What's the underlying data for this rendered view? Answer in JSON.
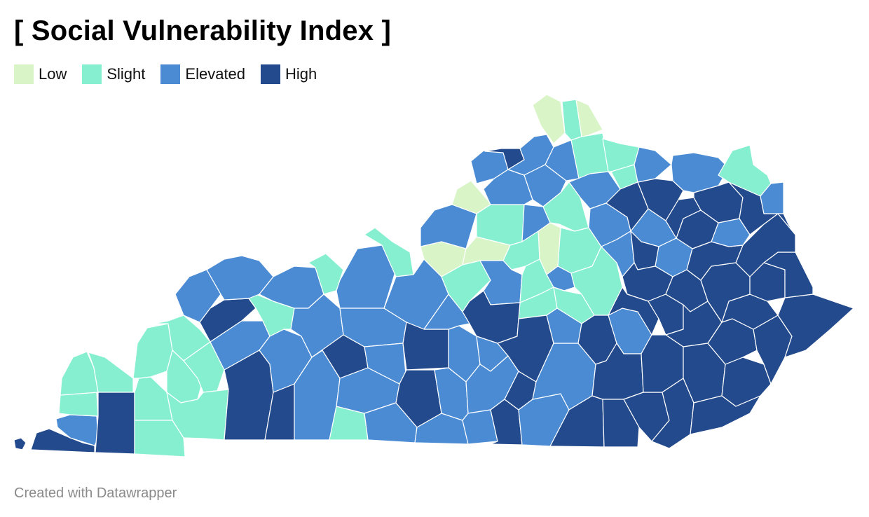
{
  "title": "[ Social Vulnerability Index ]",
  "legend": [
    {
      "label": "Low",
      "color": "#d9f5c7"
    },
    {
      "label": "Slight",
      "color": "#86efd0"
    },
    {
      "label": "Elevated",
      "color": "#4a8bd4"
    },
    {
      "label": "High",
      "color": "#234a8c"
    }
  ],
  "footer": "Created with Datawrapper"
}
